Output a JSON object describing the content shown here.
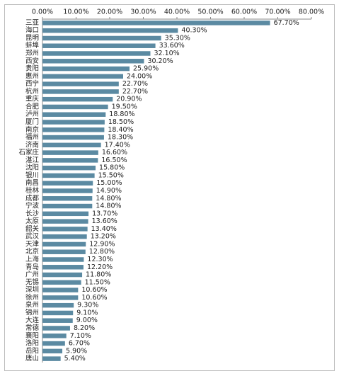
{
  "chart_data": {
    "type": "bar",
    "orientation": "horizontal",
    "categories": [
      "三亚",
      "海口",
      "昆明",
      "蚌埠",
      "郑州",
      "西安",
      "贵阳",
      "惠州",
      "西宁",
      "杭州",
      "重庆",
      "合肥",
      "泸州",
      "厦门",
      "南京",
      "福州",
      "济南",
      "石家庄",
      "湛江",
      "沈阳",
      "银川",
      "南昌",
      "桂林",
      "成都",
      "宁波",
      "长沙",
      "太原",
      "韶关",
      "武汉",
      "天津",
      "北京",
      "上海",
      "青岛",
      "广州",
      "无锡",
      "深圳",
      "徐州",
      "泉州",
      "锦州",
      "大连",
      "常德",
      "襄阳",
      "洛阳",
      "岳阳",
      "唐山"
    ],
    "values": [
      67.7,
      40.3,
      35.3,
      33.6,
      32.1,
      30.2,
      25.9,
      24.0,
      22.7,
      22.7,
      20.9,
      19.5,
      18.8,
      18.5,
      18.4,
      18.3,
      17.4,
      16.6,
      16.5,
      15.8,
      15.5,
      15.0,
      14.9,
      14.8,
      14.8,
      13.7,
      13.6,
      13.4,
      13.2,
      12.9,
      12.8,
      12.3,
      12.2,
      11.8,
      11.5,
      10.6,
      10.6,
      9.3,
      9.1,
      9.0,
      8.2,
      7.1,
      6.7,
      5.9,
      5.4
    ],
    "value_labels": [
      "67.70%",
      "40.30%",
      "35.30%",
      "33.60%",
      "32.10%",
      "30.20%",
      "25.90%",
      "24.00%",
      "22.70%",
      "22.70%",
      "20.90%",
      "19.50%",
      "18.80%",
      "18.50%",
      "18.40%",
      "18.30%",
      "17.40%",
      "16.60%",
      "16.50%",
      "15.80%",
      "15.50%",
      "15.00%",
      "14.90%",
      "14.80%",
      "14.80%",
      "13.70%",
      "13.60%",
      "13.40%",
      "13.20%",
      "12.90%",
      "12.80%",
      "12.30%",
      "12.20%",
      "11.80%",
      "11.50%",
      "10.60%",
      "10.60%",
      "9.30%",
      "9.10%",
      "9.00%",
      "8.20%",
      "7.10%",
      "6.70%",
      "5.90%",
      "5.40%"
    ],
    "color": "#5b8aa2",
    "xlim": [
      0,
      80
    ],
    "xticks": [
      {
        "value": 0,
        "label": "0.00%"
      },
      {
        "value": 10,
        "label": "10.00%"
      },
      {
        "value": 20,
        "label": "20.00%"
      },
      {
        "value": 30,
        "label": "30.00%"
      },
      {
        "value": 40,
        "label": "40.00%"
      },
      {
        "value": 50,
        "label": "50.00%"
      },
      {
        "value": 60,
        "label": "60.00%"
      },
      {
        "value": 70,
        "label": "70.00%"
      },
      {
        "value": 80,
        "label": "80.00%"
      }
    ]
  }
}
